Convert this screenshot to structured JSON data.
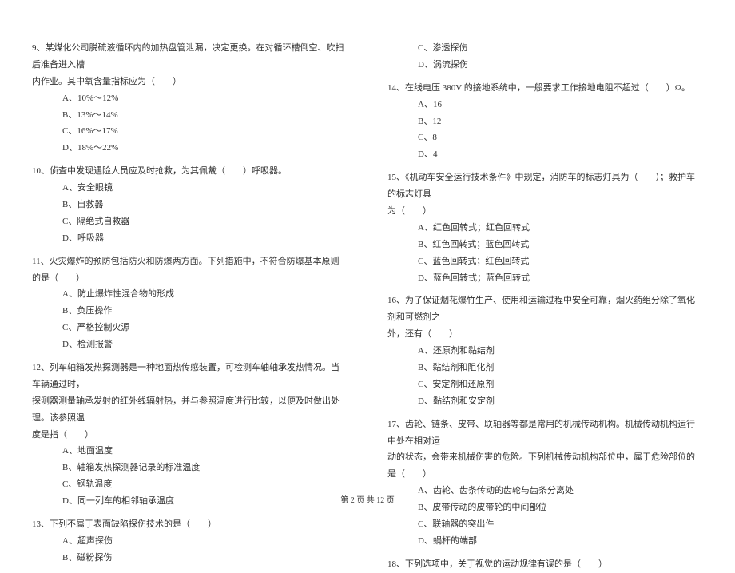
{
  "leftColumn": {
    "q9": {
      "line1": "9、某煤化公司脱硫液循环内的加热盘管泄漏，决定更换。在对循环槽倒空、吹扫后准备进入槽",
      "line2": "内作业。其中氧含量指标应为（　　）",
      "optA": "A、10%～12%",
      "optB": "B、13%～14%",
      "optC": "C、16%～17%",
      "optD": "D、18%～22%"
    },
    "q10": {
      "line1": "10、侦查中发现遇险人员应及时抢救，为其佩戴（　　）呼吸器。",
      "optA": "A、安全眼镜",
      "optB": "B、自救器",
      "optC": "C、隔绝式自救器",
      "optD": "D、呼吸器"
    },
    "q11": {
      "line1": "11、火灾爆炸的预防包括防火和防爆两方面。下列措施中，不符合防爆基本原则的是（　　）",
      "optA": "A、防止爆炸性混合物的形成",
      "optB": "B、负压操作",
      "optC": "C、严格控制火源",
      "optD": "D、检测报警"
    },
    "q12": {
      "line1": "12、列车轴箱发热探测器是一种地面热传感装置，可检测车轴轴承发热情况。当车辆通过时，",
      "line2": "探测器测量轴承发射的红外线辐射热，并与参照温度进行比较，以便及时做出处理。该参照温",
      "line3": "度是指（　　）",
      "optA": "A、地面温度",
      "optB": "B、轴箱发热探测器记录的标准温度",
      "optC": "C、钢轨温度",
      "optD": "D、同一列车的相邻轴承温度"
    },
    "q13": {
      "line1": "13、下列不属于表面缺陷探伤技术的是（　　）",
      "optA": "A、超声探伤",
      "optB": "B、磁粉探伤"
    }
  },
  "rightColumn": {
    "q13cont": {
      "optC": "C、渗透探伤",
      "optD": "D、涡流探伤"
    },
    "q14": {
      "line1": "14、在线电压 380V 的接地系统中，一般要求工作接地电阻不超过（　　）Ω。",
      "optA": "A、16",
      "optB": "B、12",
      "optC": "C、8",
      "optD": "D、4"
    },
    "q15": {
      "line1": "15、《机动车安全运行技术条件》中规定，消防车的标志灯具为（　　）；救护车的标志灯具",
      "line2": "为（　　）",
      "optA": "A、红色回转式；红色回转式",
      "optB": "B、红色回转式；蓝色回转式",
      "optC": "C、蓝色回转式；红色回转式",
      "optD": "D、蓝色回转式；蓝色回转式"
    },
    "q16": {
      "line1": "16、为了保证烟花爆竹生产、使用和运输过程中安全可靠，烟火药组分除了氧化剂和可燃剂之",
      "line2": "外，还有（　　）",
      "optA": "A、还原剂和黏结剂",
      "optB": "B、黏结剂和阻化剂",
      "optC": "C、安定剂和还原剂",
      "optD": "D、黏结剂和安定剂"
    },
    "q17": {
      "line1": "17、齿轮、链条、皮带、联轴器等都是常用的机械传动机构。机械传动机构运行中处在相对运",
      "line2": "动的状态，会带来机械伤害的危险。下列机械传动机构部位中，属于危险部位的是（　　）",
      "optA": "A、齿轮、齿条传动的齿轮与齿条分离处",
      "optB": "B、皮带传动的皮带轮的中间部位",
      "optC": "C、联轴器的突出件",
      "optD": "D、蜗杆的端部"
    },
    "q18": {
      "line1": "18、下列选项中，关于视觉的运动规律有误的是（　　）"
    }
  },
  "footer": "第 2 页 共 12 页"
}
